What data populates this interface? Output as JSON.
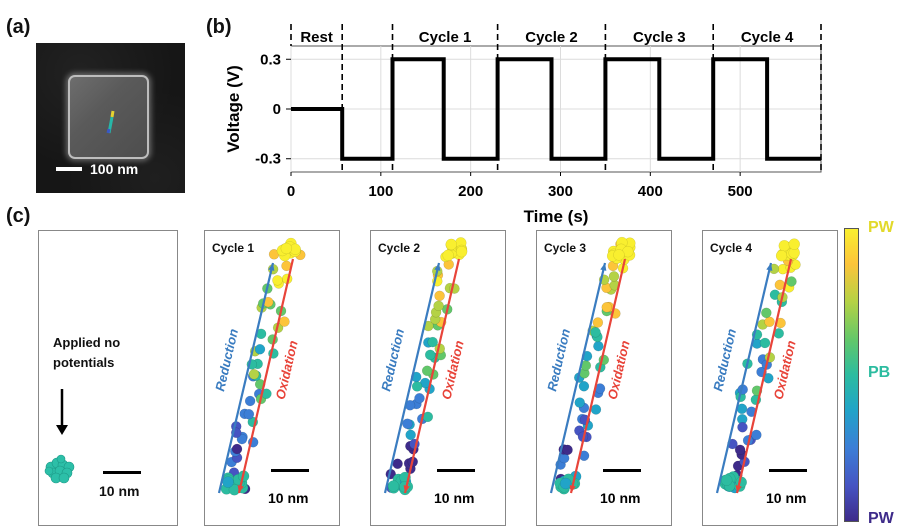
{
  "panel_labels": {
    "a": "(a)",
    "b": "(b)",
    "c": "(c)"
  },
  "sem": {
    "scale_label": "100 nm"
  },
  "chart_data": {
    "type": "line",
    "x": [
      0,
      57,
      57,
      113,
      113,
      170,
      170,
      230,
      230,
      290,
      290,
      350,
      350,
      410,
      410,
      470,
      470,
      530,
      530,
      590
    ],
    "y": [
      0,
      0,
      -0.3,
      -0.3,
      0.3,
      0.3,
      -0.3,
      -0.3,
      0.3,
      0.3,
      -0.3,
      -0.3,
      0.3,
      0.3,
      -0.3,
      -0.3,
      0.3,
      0.3,
      -0.3,
      -0.3
    ],
    "xlabel": "Time (s)",
    "ylabel": "Voltage (V)",
    "xlim": [
      0,
      590
    ],
    "ylim": [
      -0.38,
      0.38
    ],
    "xticks": [
      0,
      100,
      200,
      300,
      400,
      500
    ],
    "yticks": [
      0.3,
      0,
      -0.3
    ],
    "ytick_labels": [
      "0.3",
      "0",
      "-0.3"
    ],
    "segments": [
      {
        "label": "Rest",
        "start": 0,
        "end": 57
      },
      {
        "label": "Cycle 1",
        "start": 113,
        "end": 230
      },
      {
        "label": "Cycle 2",
        "start": 230,
        "end": 350
      },
      {
        "label": "Cycle 3",
        "start": 350,
        "end": 470
      },
      {
        "label": "Cycle 4",
        "start": 470,
        "end": 590
      }
    ],
    "dividers": [
      57,
      113,
      230,
      350,
      470,
      590
    ],
    "grid": true
  },
  "panel_c": {
    "no_potential_label": "Applied no potentials",
    "scale_label": "10 nm",
    "reduction_label": "Reduction",
    "oxidation_label": "Oxidation",
    "cycles": [
      "Cycle 1",
      "Cycle 2",
      "Cycle 3",
      "Cycle 4"
    ]
  },
  "colorbar": {
    "top_label": "PW",
    "middle_label": "PB",
    "bottom_label": "PW",
    "colors": {
      "pw_top": "#f9ef2f",
      "pb": "#2cbca0",
      "pw_bottom": "#3e2b8a"
    }
  },
  "colors": {
    "reduction_arrow": "#3a7cc0",
    "oxidation_arrow": "#e8443a",
    "trace": "#000000"
  }
}
